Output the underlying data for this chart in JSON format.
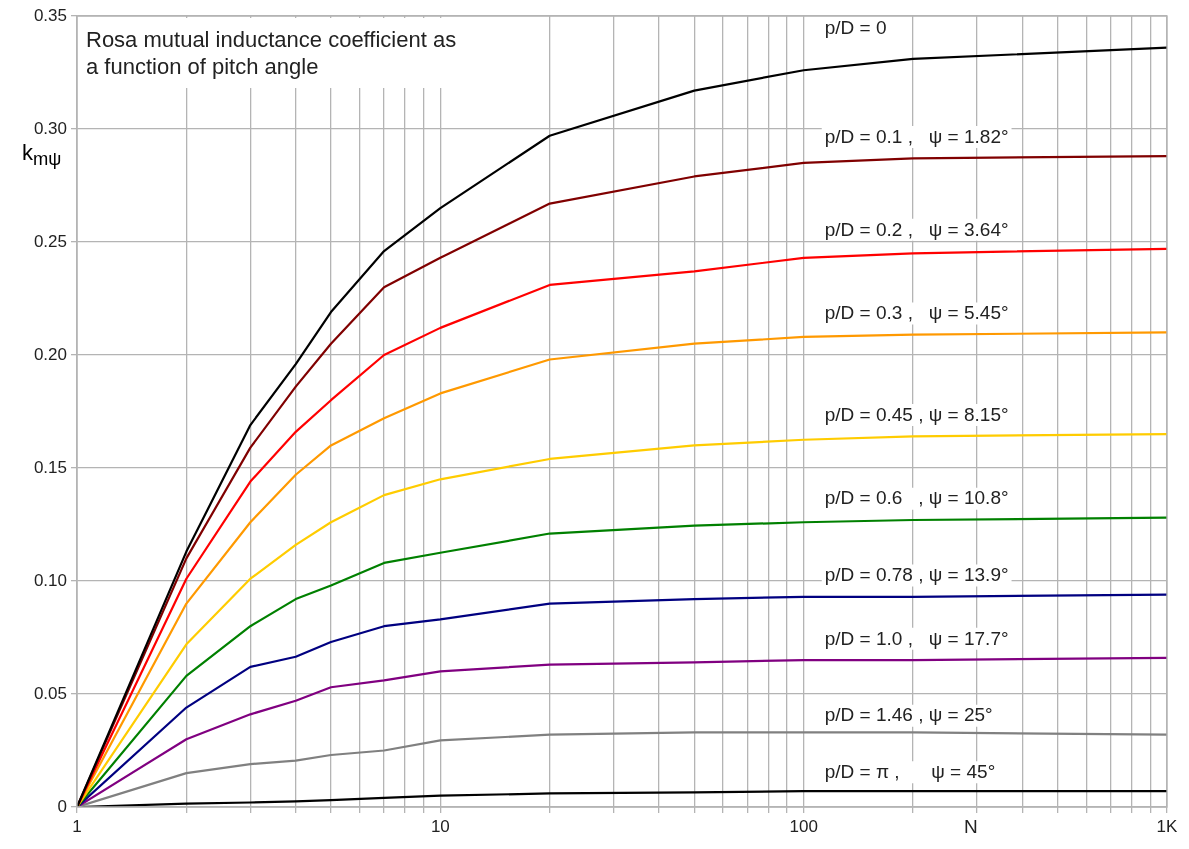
{
  "chart_data": {
    "type": "line",
    "title": "Rosa mutual inductance coefficient as a function of pitch angle",
    "xlabel": "N",
    "ylabel": "k$_{mψ}$",
    "log": "x",
    "x": [
      1,
      2,
      3,
      4,
      5,
      7,
      10,
      20,
      50,
      100,
      200,
      1000
    ],
    "xlim": [
      1,
      1000
    ],
    "ylim": [
      0,
      0.35
    ],
    "xticks": [
      1,
      {
        "value": 2,
        "label": null
      },
      {
        "value": 3,
        "label": null
      },
      {
        "value": 4,
        "label": null
      },
      {
        "value": 5,
        "label": null
      },
      {
        "value": 6,
        "label": null
      },
      {
        "value": 7,
        "label": null
      },
      {
        "value": 8,
        "label": null
      },
      {
        "value": 9,
        "label": null
      },
      10,
      {
        "value": 20,
        "label": null
      },
      {
        "value": 30,
        "label": null
      },
      {
        "value": 40,
        "label": null
      },
      {
        "value": 50,
        "label": null
      },
      {
        "value": 60,
        "label": null
      },
      {
        "value": 70,
        "label": null
      },
      {
        "value": 80,
        "label": null
      },
      {
        "value": 90,
        "label": null
      },
      100,
      {
        "value": 200,
        "label": null
      },
      {
        "value": 300,
        "label": null
      },
      {
        "value": 400,
        "label": null
      },
      {
        "value": 500,
        "label": null
      },
      {
        "value": 600,
        "label": null
      },
      {
        "value": 700,
        "label": null
      },
      {
        "value": 800,
        "label": null
      },
      {
        "value": 900,
        "label": null
      },
      {
        "value": 1000,
        "label": "1K"
      }
    ],
    "yticks": [
      0,
      0.05,
      {
        "value": 0.1,
        "label": "0.10"
      },
      0.15,
      {
        "value": 0.2,
        "label": "0.20"
      },
      0.25,
      {
        "value": 0.3,
        "label": "0.30"
      },
      0.35
    ],
    "grid": true,
    "legend": false,
    "marker": "none",
    "line_style": "solid",
    "series": [
      {
        "name": "p/D = 0",
        "color": "#000000",
        "values": [
          0,
          0.113,
          0.169,
          0.196,
          0.219,
          0.246,
          0.265,
          0.297,
          0.317,
          0.326,
          0.331,
          0.336
        ]
      },
      {
        "name": "p/D = 0.1 ,   ψ = 1.82°",
        "color": "#800000",
        "values": [
          0,
          0.11,
          0.159,
          0.186,
          0.205,
          0.23,
          0.243,
          0.267,
          0.279,
          0.285,
          0.287,
          0.288
        ]
      },
      {
        "name": "p/D = 0.2 ,   ψ = 3.64°",
        "color": "#ff0000",
        "values": [
          0,
          0.101,
          0.144,
          0.166,
          0.18,
          0.2,
          0.212,
          0.231,
          0.237,
          0.243,
          0.245,
          0.247
        ]
      },
      {
        "name": "p/D = 0.3 ,   ψ = 5.45°",
        "color": "#ff9900",
        "values": [
          0,
          0.09,
          0.126,
          0.147,
          0.16,
          0.172,
          0.183,
          0.198,
          0.205,
          0.208,
          0.209,
          0.21
        ]
      },
      {
        "name": "p/D = 0.45 , ψ = 8.15°",
        "color": "#ffcc00",
        "values": [
          0,
          0.072,
          0.101,
          0.116,
          0.126,
          0.138,
          0.145,
          0.154,
          0.16,
          0.1625,
          0.164,
          0.165
        ]
      },
      {
        "name": "p/D = 0.6   , ψ = 10.8°",
        "color": "#008000",
        "values": [
          0,
          0.058,
          0.08,
          0.092,
          0.098,
          0.108,
          0.1125,
          0.121,
          0.1245,
          0.126,
          0.127,
          0.128
        ]
      },
      {
        "name": "p/D = 0.78 , ψ = 13.9°",
        "color": "#000080",
        "values": [
          0,
          0.044,
          0.062,
          0.0665,
          0.073,
          0.08,
          0.083,
          0.09,
          0.092,
          0.093,
          0.093,
          0.094
        ]
      },
      {
        "name": "p/D = 1.0 ,   ψ = 17.7°",
        "color": "#800080",
        "values": [
          0,
          0.03,
          0.041,
          0.047,
          0.053,
          0.056,
          0.06,
          0.063,
          0.064,
          0.065,
          0.065,
          0.066
        ]
      },
      {
        "name": "p/D = 1.46 , ψ = 25°",
        "color": "#808080",
        "values": [
          0,
          0.015,
          0.019,
          0.0205,
          0.023,
          0.025,
          0.0295,
          0.032,
          0.033,
          0.033,
          0.033,
          0.032
        ]
      },
      {
        "name": "p/D = π ,      ψ = 45°",
        "color": "#000000",
        "values": [
          0,
          0.0015,
          0.002,
          0.0025,
          0.003,
          0.004,
          0.005,
          0.006,
          0.0065,
          0.007,
          0.007,
          0.007
        ]
      }
    ]
  }
}
